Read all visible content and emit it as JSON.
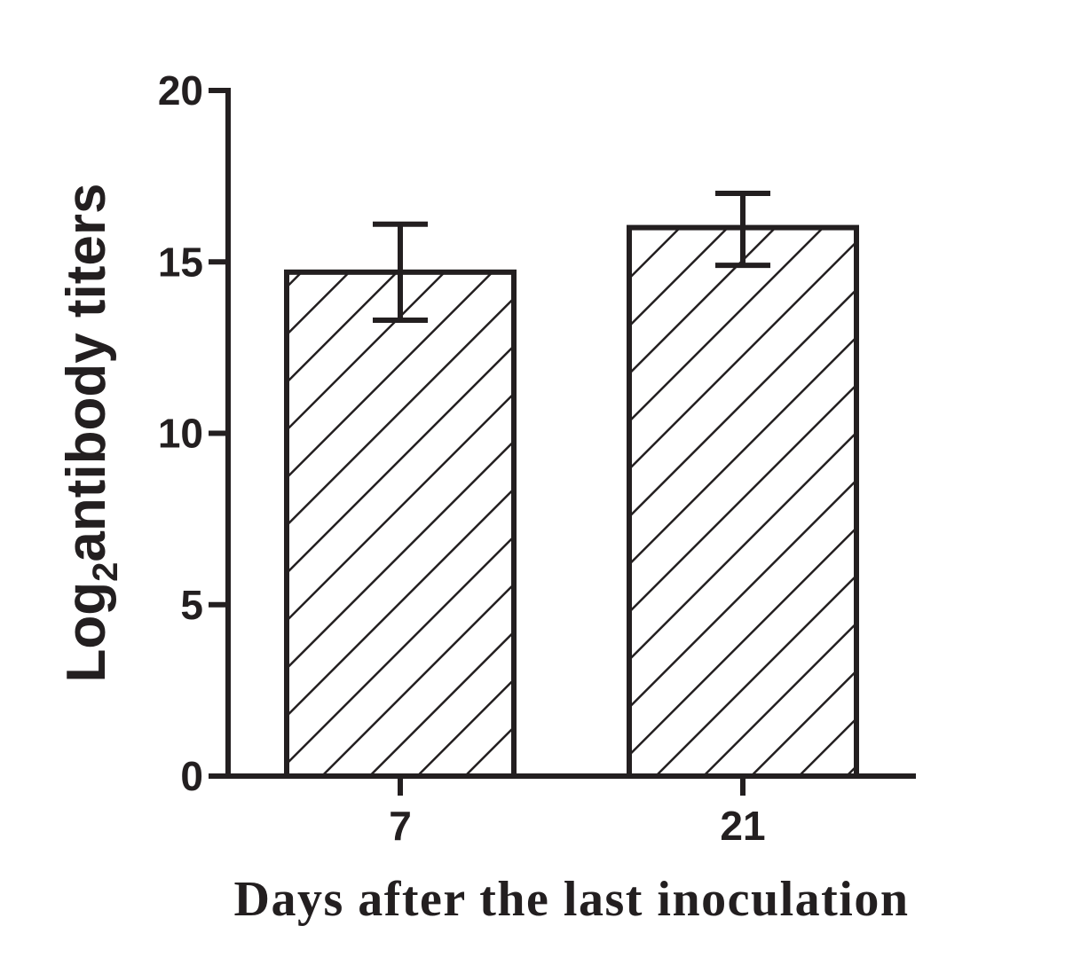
{
  "chart_data": {
    "type": "bar",
    "categories": [
      "7",
      "21"
    ],
    "values": [
      14.7,
      16.0
    ],
    "errors_upper": [
      16.1,
      17.0
    ],
    "errors_lower": [
      13.3,
      14.9
    ],
    "ylim": [
      0,
      20
    ],
    "yticks": [
      "0",
      "5",
      "10",
      "15",
      "20"
    ],
    "ylabel_main": "Log",
    "ylabel_sub": "2",
    "ylabel_rest": "antibody titers",
    "xlabel": "Days after the last inoculation",
    "bar_fill": "diagonal-hatch",
    "color": "#231f20",
    "grid": false,
    "legend": "none"
  }
}
